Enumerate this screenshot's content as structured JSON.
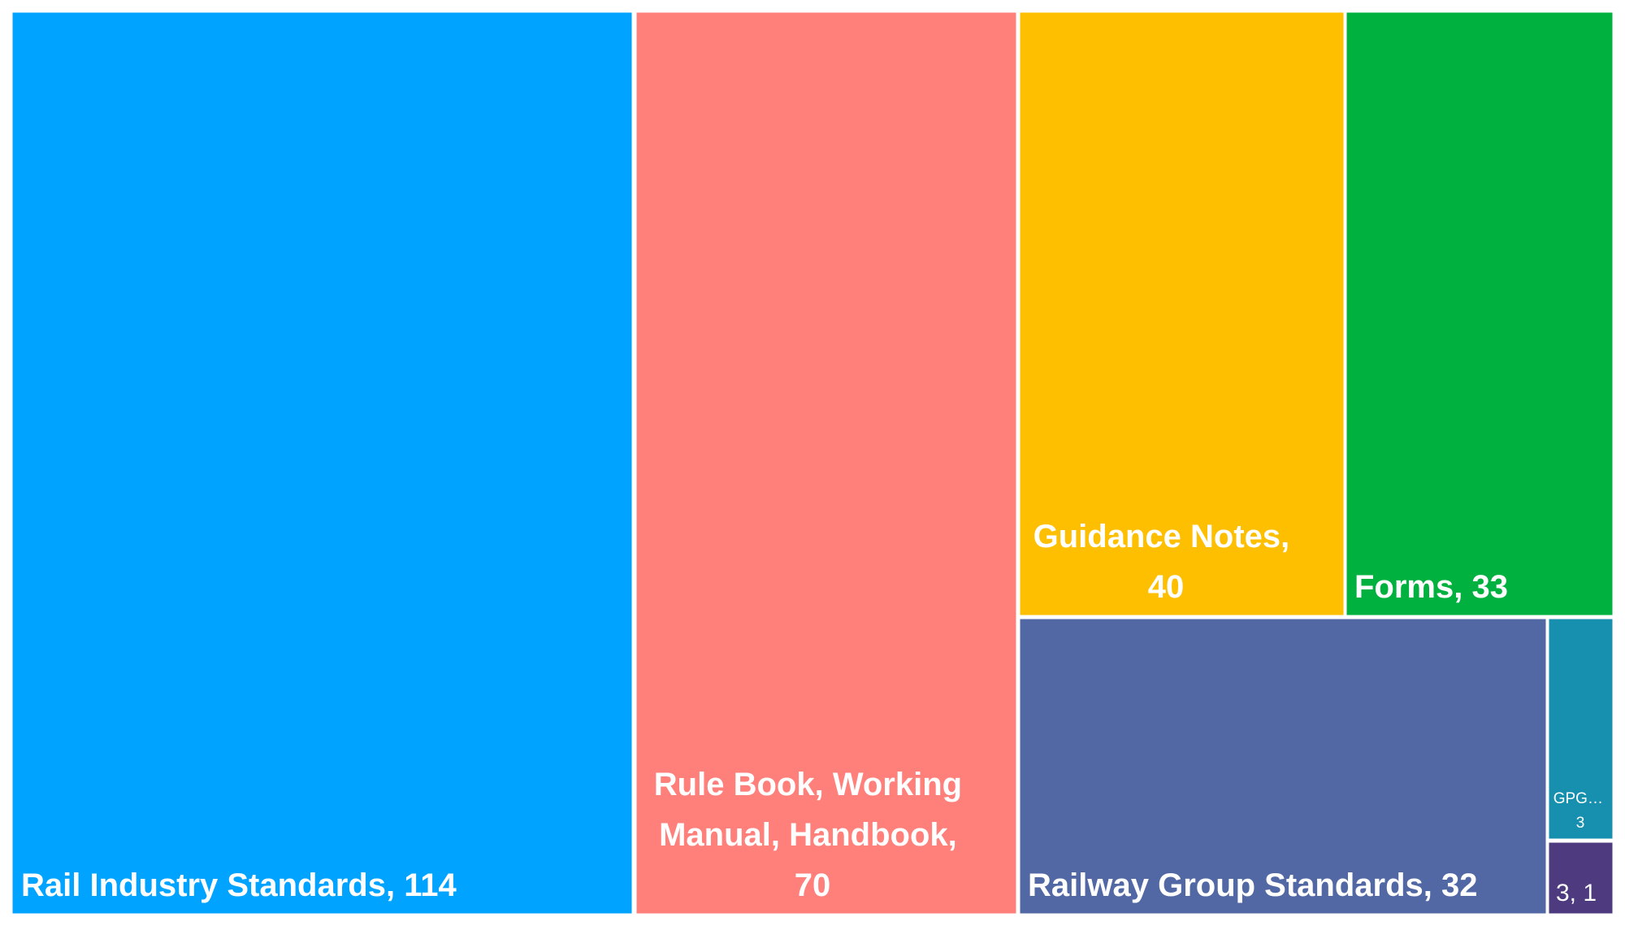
{
  "chart_data": {
    "type": "treemap",
    "title": "",
    "items": [
      {
        "name": "Rail Industry Standards",
        "value": 114,
        "label": "Rail Industry Standards, 114",
        "color": "#00A3FF"
      },
      {
        "name": "Rule Book, Working Manual, Handbook",
        "value": 70,
        "label": "Rule Book, Working Manual, Handbook, 70",
        "color": "#FF7F7B"
      },
      {
        "name": "Guidance Notes",
        "value": 40,
        "label": "Guidance Notes, 40",
        "color": "#FDBF00"
      },
      {
        "name": "Forms",
        "value": 33,
        "label": "Forms, 33",
        "color": "#00B140"
      },
      {
        "name": "Railway Group Standards",
        "value": 32,
        "label": "Railway Group Standards, 32",
        "color": "#5268A5"
      },
      {
        "name": "GPG...",
        "value": 3,
        "label": "GPG… 3",
        "color": "#178FAF"
      },
      {
        "name": "3",
        "value": 1,
        "label": "3, 1",
        "color": "#4E3A7E"
      }
    ]
  }
}
